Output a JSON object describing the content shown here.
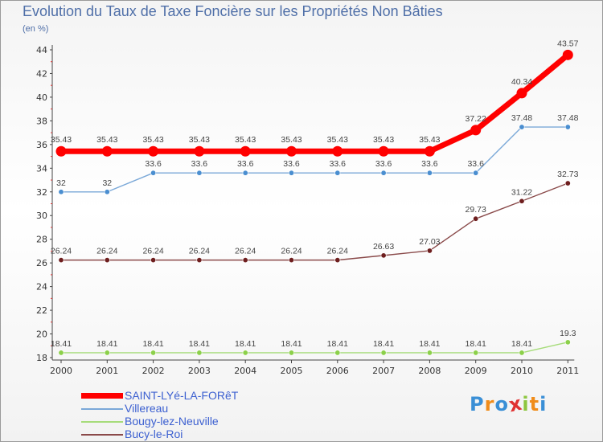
{
  "title": "Evolution du Taux de Taxe Foncière sur les Propriétés Non Bâties",
  "unit_label": "(en %)",
  "logo": {
    "letters": [
      "P",
      "r",
      "o",
      "x",
      "i",
      "t",
      "i"
    ],
    "colors": [
      "#3a8fd6",
      "#f08c1a",
      "#3a8fd6",
      "#e03030",
      "#8dc63f",
      "#f08c1a",
      "#3a8fd6"
    ]
  },
  "chart_data": {
    "type": "line",
    "x": [
      "2000",
      "2001",
      "2002",
      "2003",
      "2004",
      "2005",
      "2006",
      "2007",
      "2008",
      "2009",
      "2010",
      "2011"
    ],
    "ylim": [
      18,
      44
    ],
    "yticks": [
      18,
      20,
      22,
      24,
      26,
      28,
      30,
      32,
      34,
      36,
      38,
      40,
      42,
      44
    ],
    "grid": false,
    "legend_position": "bottom-left",
    "series": [
      {
        "name": "SAINT-LYé-LA-FORêT",
        "color": "#ff0000",
        "width": "thick",
        "values": [
          35.43,
          35.43,
          35.43,
          35.43,
          35.43,
          35.43,
          35.43,
          35.43,
          35.43,
          37.22,
          40.34,
          43.57
        ],
        "labels": [
          "35.43",
          "35.43",
          "35.43",
          "35.43",
          "35.43",
          "35.43",
          "35.43",
          "35.43",
          "35.43",
          "37.22",
          "40.34",
          "43.57"
        ]
      },
      {
        "name": "Villereau",
        "color": "#7aa8d8",
        "marker": "#4a8ed0",
        "width": "thin",
        "values": [
          32,
          32,
          33.6,
          33.6,
          33.6,
          33.6,
          33.6,
          33.6,
          33.6,
          33.6,
          37.48,
          37.48
        ],
        "labels": [
          "32",
          "32",
          "33.6",
          "33.6",
          "33.6",
          "33.6",
          "33.6",
          "33.6",
          "33.6",
          "33.6",
          "37.48",
          "37.48"
        ]
      },
      {
        "name": "Bougy-lez-Neuville",
        "color": "#a6dc7a",
        "marker": "#8cd04a",
        "width": "thin",
        "values": [
          18.41,
          18.41,
          18.41,
          18.41,
          18.41,
          18.41,
          18.41,
          18.41,
          18.41,
          18.41,
          18.41,
          19.3
        ],
        "labels": [
          "18.41",
          "18.41",
          "18.41",
          "18.41",
          "18.41",
          "18.41",
          "18.41",
          "18.41",
          "18.41",
          "18.41",
          "18.41",
          "19.3"
        ]
      },
      {
        "name": "Bucy-le-Roi",
        "color": "#8a4a4a",
        "marker": "#6e1e1e",
        "width": "thin",
        "values": [
          26.24,
          26.24,
          26.24,
          26.24,
          26.24,
          26.24,
          26.24,
          26.63,
          27.03,
          29.73,
          31.22,
          32.73
        ],
        "labels": [
          "26.24",
          "26.24",
          "26.24",
          "26.24",
          "26.24",
          "26.24",
          "26.24",
          "26.63",
          "27.03",
          "29.73",
          "31.22",
          "32.73"
        ]
      }
    ],
    "legend_order": [
      0,
      1,
      2,
      3
    ]
  }
}
